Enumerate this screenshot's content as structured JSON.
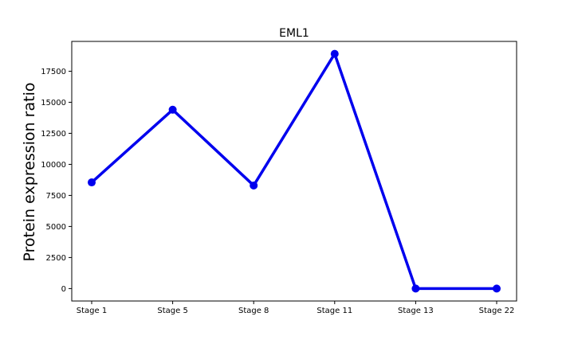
{
  "chart_data": {
    "type": "line",
    "title": "EML1",
    "xlabel": "",
    "ylabel": "Protein expression ratio",
    "categories": [
      "Stage 1",
      "Stage 5",
      "Stage 8",
      "Stage 11",
      "Stage 13",
      "Stage 22"
    ],
    "series": [
      {
        "values": [
          8550,
          14400,
          8300,
          18900,
          0,
          0
        ],
        "color": "#0000ee",
        "marker": "circle"
      }
    ],
    "ylim": [
      -1000,
      19900
    ],
    "yticks": [
      0,
      2500,
      5000,
      7500,
      10000,
      12500,
      15000,
      17500
    ],
    "ytick_labels": [
      "0",
      "2500",
      "5000",
      "7500",
      "10000",
      "12500",
      "15000",
      "17500"
    ],
    "grid": false,
    "legend": "none"
  }
}
